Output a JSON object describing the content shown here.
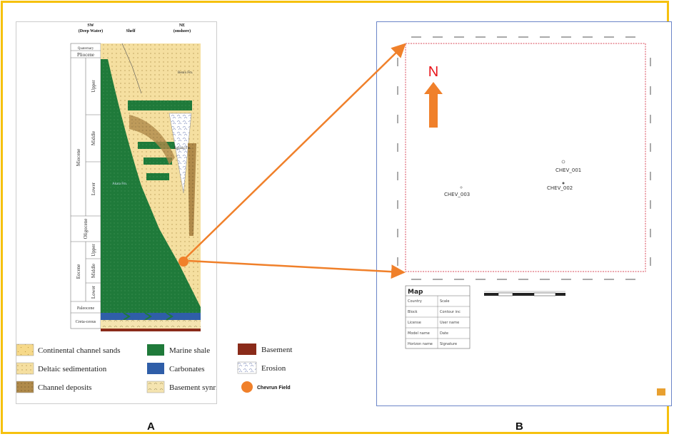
{
  "panelA": {
    "label": "A",
    "header": {
      "sw": "SW",
      "sw_sub": "(Deep Water)",
      "shelf": "Shelf",
      "ne": "NE",
      "ne_sub": "(onshore)"
    },
    "ages": {
      "quaternary": "Quaternary",
      "pliocene": "Pliocene",
      "miocene": "Miocene",
      "upper": "Upper",
      "middle": "Middle",
      "lower": "Lower",
      "oligocene": "Oligocene",
      "eocene": "Eocene",
      "e_upper": "Upper",
      "e_middle": "Middle",
      "e_lower": "Lower",
      "paleocene": "Paleocene",
      "cretaceous": "Creta-ceous"
    },
    "formations": {
      "benin": "Benin Fm.",
      "agbada": "Agbada Fm.",
      "akata": "Akata Fm."
    },
    "legend": {
      "continental": "Continental channel sands",
      "deltaic": "Deltaic sedimentation",
      "channel": "Channel deposits",
      "marine": "Marine shale",
      "carbonates": "Carbonates",
      "synrift": "Basement synrift",
      "basement": "Basement",
      "erosion": "Erosion",
      "field": "Chevrun Field"
    },
    "colors": {
      "sand": "#f5dfa0",
      "shale": "#1f7a3a",
      "carbonate": "#2f5ea8",
      "basement": "#8a2b1a",
      "field": "#f0802a",
      "channel": "#b08a4a"
    }
  },
  "panelB": {
    "label": "B",
    "north": "N",
    "wells": [
      {
        "name": "CHEV_001"
      },
      {
        "name": "CHEV_002"
      },
      {
        "name": "CHEV_003"
      }
    ],
    "info": {
      "title": "Map",
      "rows": [
        [
          "Country",
          "Scale"
        ],
        [
          "Block",
          "Contour inc"
        ],
        [
          "License",
          "User name"
        ],
        [
          "Model name",
          "Date"
        ],
        [
          "Horizon name",
          "Signature"
        ]
      ]
    }
  },
  "arrowColor": "#f0802a"
}
